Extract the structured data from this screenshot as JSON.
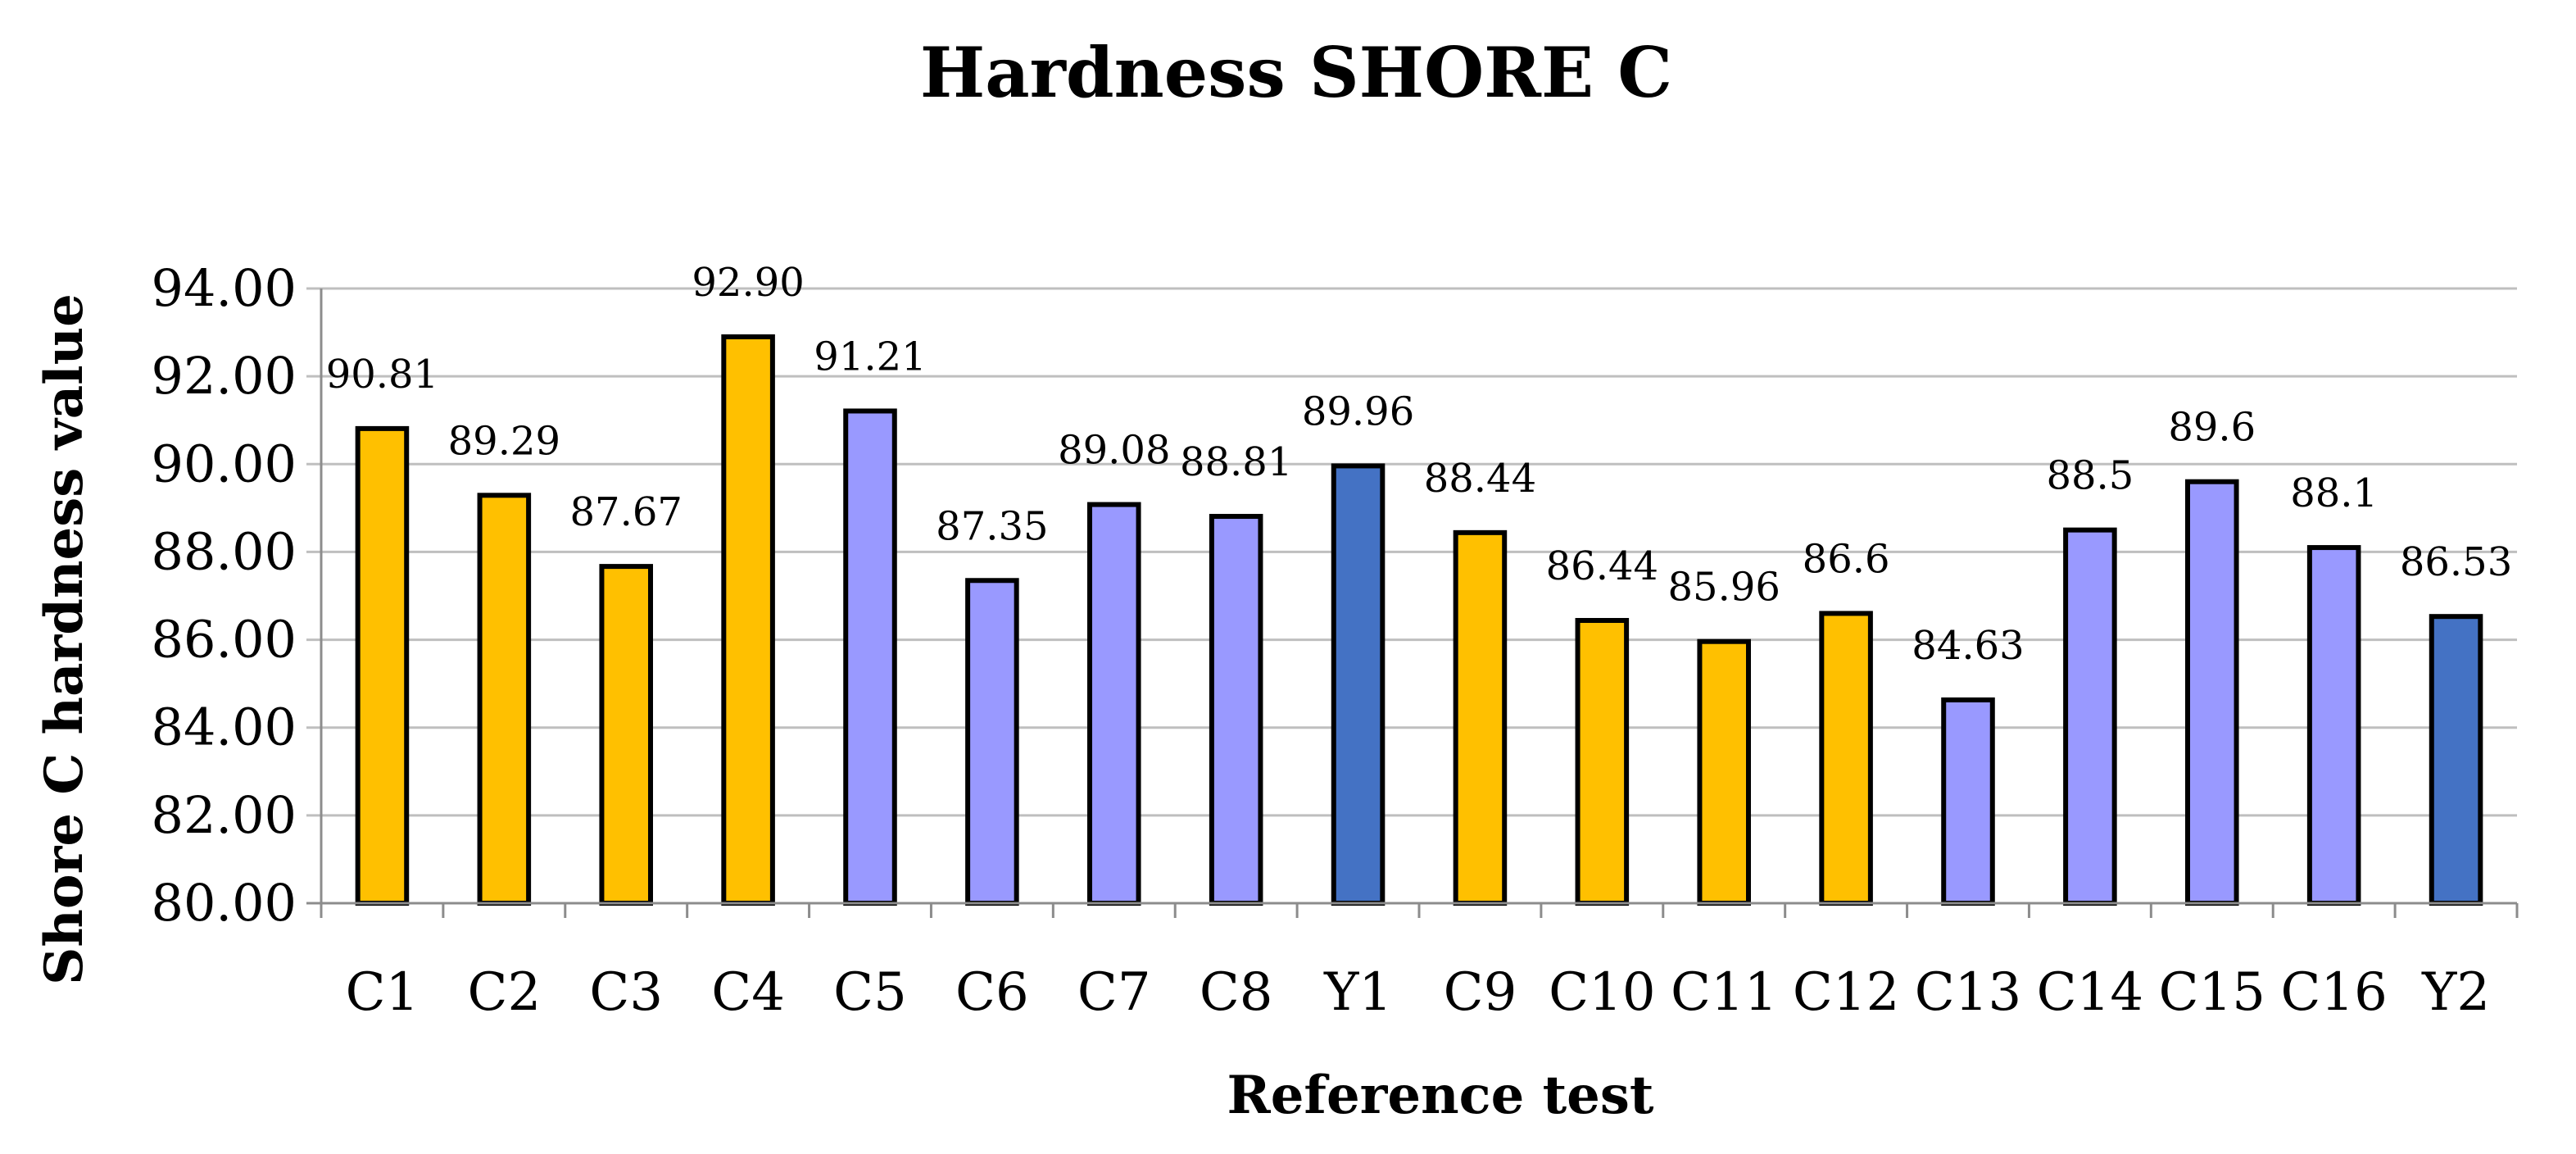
{
  "chart_data": {
    "type": "bar",
    "title": "Hardness SHORE C",
    "xlabel": "Reference test",
    "ylabel": "Shore C hardness value",
    "ylim": [
      80,
      94
    ],
    "yticks": [
      "80.00",
      "82.00",
      "84.00",
      "86.00",
      "88.00",
      "90.00",
      "92.00",
      "94.00"
    ],
    "grid": true,
    "legend": "none",
    "categories": [
      "C1",
      "C2",
      "C3",
      "C4",
      "C5",
      "C6",
      "C7",
      "C8",
      "Y1",
      "C9",
      "C10",
      "C11",
      "C12",
      "C13",
      "C14",
      "C15",
      "C16",
      "Y2"
    ],
    "values": [
      90.81,
      89.29,
      87.67,
      92.9,
      91.21,
      87.35,
      89.08,
      88.81,
      89.96,
      88.44,
      86.44,
      85.96,
      86.6,
      84.63,
      88.5,
      89.6,
      88.1,
      86.53
    ],
    "data_labels": [
      "90.81",
      "89.29",
      "87.67",
      "92.90",
      "91.21",
      "87.35",
      "89.08",
      "88.81",
      "89.96",
      "88.44",
      "86.44",
      "85.96",
      "86.6",
      "84.63",
      "88.5",
      "89.6",
      "88.1",
      "86.53"
    ],
    "bar_colors": [
      "#FFC000",
      "#FFC000",
      "#FFC000",
      "#FFC000",
      "#9999FF",
      "#9999FF",
      "#9999FF",
      "#9999FF",
      "#4472C4",
      "#FFC000",
      "#FFC000",
      "#FFC000",
      "#FFC000",
      "#9999FF",
      "#9999FF",
      "#9999FF",
      "#9999FF",
      "#4472C4"
    ]
  }
}
